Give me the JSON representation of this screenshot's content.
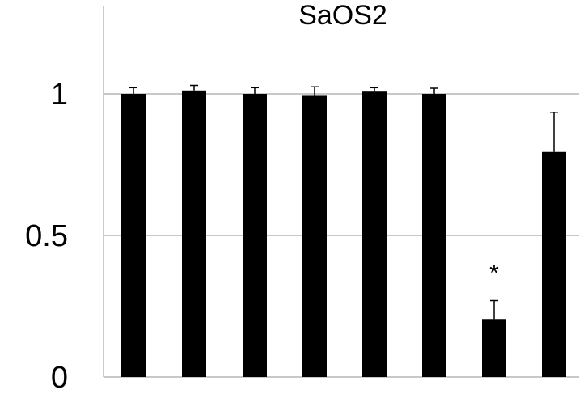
{
  "chart_data": {
    "type": "bar",
    "title": "SaOS2",
    "xlabel": "",
    "ylabel": "",
    "categories": [
      "",
      "",
      "",
      "",
      "",
      "",
      "",
      ""
    ],
    "values": [
      1.0,
      1.012,
      1.0,
      0.993,
      1.008,
      1.0,
      0.205,
      0.795
    ],
    "errors": [
      0.022,
      0.018,
      0.022,
      0.032,
      0.014,
      0.02,
      0.065,
      0.14
    ],
    "ylim": [
      0,
      1.3
    ],
    "yticks": [
      0,
      0.5,
      1
    ],
    "ytick_labels": [
      "0",
      "0.5",
      "1"
    ],
    "grid": true,
    "bar_color": "#000000",
    "grid_color": "#a6a6a6",
    "axis_color": "#a6a6a6",
    "annotations": [
      {
        "bar_index": 6,
        "text": "*"
      }
    ]
  }
}
